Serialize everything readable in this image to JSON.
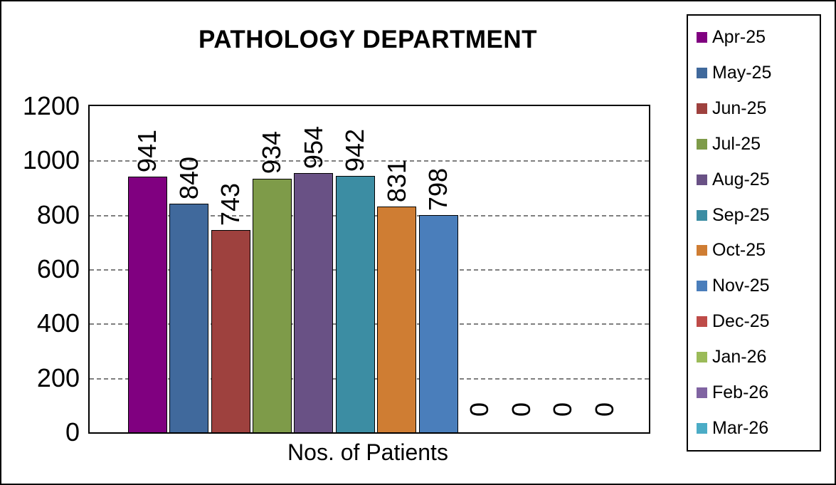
{
  "frame": {
    "background": "#ffffff",
    "border_color": "#000000"
  },
  "chart_data": {
    "type": "bar",
    "title": "PATHOLOGY DEPARTMENT",
    "xlabel": "Nos. of Patients",
    "ylabel": "",
    "ylim": [
      0,
      1200
    ],
    "ytick_interval": 200,
    "yticks": [
      0,
      200,
      400,
      600,
      800,
      1000,
      1200
    ],
    "grid": "dashed-horizontal",
    "gridline_color": "#7f7f7f",
    "legend_position": "right",
    "data_label_style": "rotated-90",
    "categories": [
      "Apr-25",
      "May-25",
      "Jun-25",
      "Jul-25",
      "Aug-25",
      "Sep-25",
      "Oct-25",
      "Nov-25",
      "Dec-25",
      "Jan-26",
      "Feb-26",
      "Mar-26"
    ],
    "values": [
      941,
      840,
      743,
      934,
      954,
      942,
      831,
      798,
      0,
      0,
      0,
      0
    ],
    "colors": [
      "#800080",
      "#40699C",
      "#9E413E",
      "#7E9B49",
      "#695185",
      "#3C8DA3",
      "#CF7D33",
      "#4A7EBB",
      "#BE4B48",
      "#9BBB59",
      "#8064A2",
      "#4BACC6"
    ]
  }
}
